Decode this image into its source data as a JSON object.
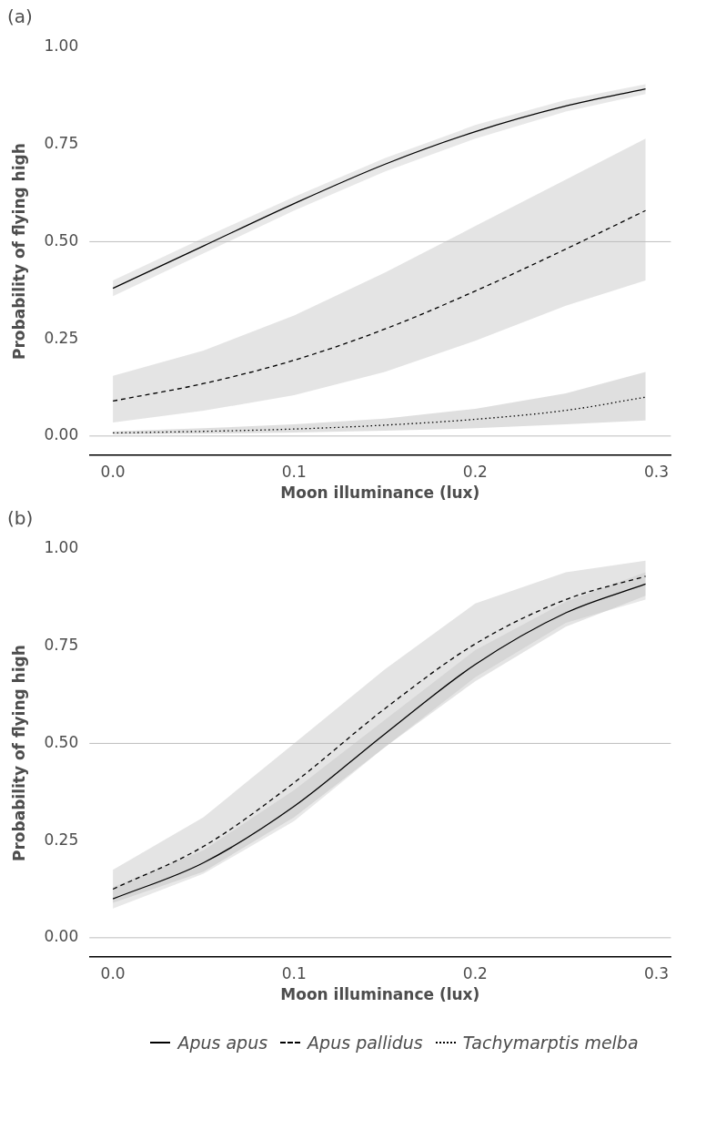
{
  "chart_data": [
    {
      "type": "line",
      "title": "(a)",
      "xlabel": "Moon illuminance (lux)",
      "ylabel": "Probability of flying high",
      "legend": "bottom",
      "x": [
        0,
        0.05,
        0.1,
        0.15,
        0.2,
        0.25,
        0.294
      ],
      "xlim": [
        -0.013,
        0.308
      ],
      "xticks": [
        {
          "value": 0,
          "label": "0.0"
        },
        {
          "value": 0.1,
          "label": "0.1"
        },
        {
          "value": 0.2,
          "label": "0.2"
        },
        {
          "value": 0.3,
          "label": "0.3"
        }
      ],
      "ylim": [
        -0.05,
        1.0
      ],
      "yticks": [
        {
          "value": 0,
          "label": "0.00"
        },
        {
          "value": 0.25,
          "label": "0.25"
        },
        {
          "value": 0.5,
          "label": "0.50"
        },
        {
          "value": 0.75,
          "label": "0.75"
        },
        {
          "value": 1,
          "label": "1.00"
        }
      ],
      "ref_lines": [
        {
          "axis": "y",
          "value": 0,
          "color": "#bebebe"
        },
        {
          "axis": "y",
          "value": 0.5,
          "color": "#bebebe"
        }
      ],
      "series": [
        {
          "name": "Apus apus",
          "color": "#000000",
          "line_style": "solid",
          "values": [
            0.38,
            0.489,
            0.598,
            0.699,
            0.783,
            0.849,
            0.893
          ],
          "lower": [
            0.36,
            0.47,
            0.58,
            0.68,
            0.765,
            0.835,
            0.88
          ],
          "upper": [
            0.4,
            0.51,
            0.615,
            0.715,
            0.8,
            0.865,
            0.905
          ]
        },
        {
          "name": "Apus pallidus",
          "color": "#000000",
          "line_style": "dashed",
          "values": [
            0.09,
            0.135,
            0.195,
            0.275,
            0.373,
            0.481,
            0.58
          ],
          "lower": [
            0.035,
            0.065,
            0.105,
            0.165,
            0.245,
            0.335,
            0.4
          ],
          "upper": [
            0.155,
            0.22,
            0.31,
            0.42,
            0.54,
            0.66,
            0.765
          ]
        },
        {
          "name": "Tachymarptis melba",
          "color": "#000000",
          "line_style": "dotted",
          "values": [
            0.008,
            0.012,
            0.018,
            0.028,
            0.043,
            0.066,
            0.1
          ],
          "lower": [
            0.004,
            0.006,
            0.009,
            0.014,
            0.02,
            0.03,
            0.04
          ],
          "upper": [
            0.012,
            0.02,
            0.03,
            0.045,
            0.07,
            0.11,
            0.165
          ]
        }
      ]
    },
    {
      "type": "line",
      "title": "(b)",
      "xlabel": "Moon illuminance (lux)",
      "ylabel": "Probability of flying high",
      "x": [
        0,
        0.05,
        0.1,
        0.15,
        0.2,
        0.25,
        0.294
      ],
      "xlim": [
        -0.013,
        0.308
      ],
      "xticks": [
        {
          "value": 0,
          "label": "0.0"
        },
        {
          "value": 0.1,
          "label": "0.1"
        },
        {
          "value": 0.2,
          "label": "0.2"
        },
        {
          "value": 0.3,
          "label": "0.3"
        }
      ],
      "ylim": [
        -0.05,
        1.0
      ],
      "yticks": [
        {
          "value": 0,
          "label": "0.00"
        },
        {
          "value": 0.25,
          "label": "0.25"
        },
        {
          "value": 0.5,
          "label": "0.50"
        },
        {
          "value": 0.75,
          "label": "0.75"
        },
        {
          "value": 1,
          "label": "1.00"
        }
      ],
      "ref_lines": [
        {
          "axis": "y",
          "value": 0,
          "color": "#bebebe"
        },
        {
          "axis": "y",
          "value": 0.5,
          "color": "#bebebe"
        }
      ],
      "series": [
        {
          "name": "Apus apus",
          "color": "#000000",
          "line_style": "solid",
          "values": [
            0.1,
            0.193,
            0.338,
            0.524,
            0.703,
            0.836,
            0.91
          ],
          "lower": [
            0.075,
            0.165,
            0.3,
            0.49,
            0.67,
            0.81,
            0.87
          ],
          "upper": [
            0.13,
            0.225,
            0.38,
            0.56,
            0.74,
            0.865,
            0.94
          ]
        },
        {
          "name": "Apus pallidus",
          "color": "#000000",
          "line_style": "dashed",
          "values": [
            0.125,
            0.235,
            0.399,
            0.589,
            0.756,
            0.87,
            0.93
          ],
          "lower": [
            0.09,
            0.17,
            0.31,
            0.49,
            0.66,
            0.8,
            0.88
          ],
          "upper": [
            0.175,
            0.31,
            0.5,
            0.69,
            0.86,
            0.94,
            0.97
          ]
        }
      ]
    }
  ]
}
